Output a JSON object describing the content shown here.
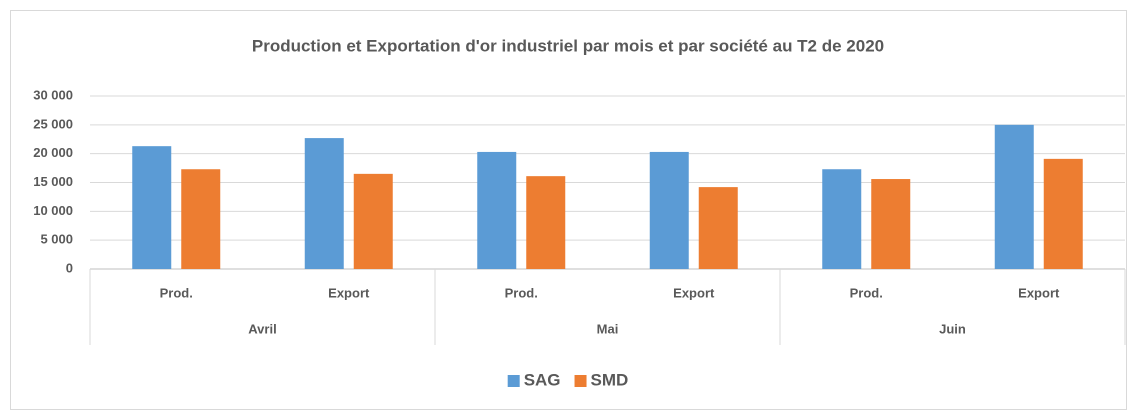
{
  "chart_data": {
    "type": "bar",
    "title": "Production et Exportation d'or industriel par mois et par société au T2 de 2020",
    "categories": [
      "Prod.",
      "Export",
      "Prod.",
      "Export",
      "Prod.",
      "Export"
    ],
    "groups": [
      "Avril",
      "Mai",
      "Juin"
    ],
    "series": [
      {
        "name": "SAG",
        "color": "#5b9bd5",
        "values": [
          21300,
          22700,
          20300,
          20300,
          17300,
          25000
        ]
      },
      {
        "name": "SMD",
        "color": "#ed7d31",
        "values": [
          17300,
          16500,
          16100,
          14200,
          15600,
          19100
        ]
      }
    ],
    "ylim": [
      0,
      30000
    ],
    "yticks": [
      0,
      {
        "value": 5000,
        "label": "5 000"
      },
      {
        "value": 10000,
        "label": "10 000"
      },
      {
        "value": 15000,
        "label": "15 000"
      },
      {
        "value": 20000,
        "label": "20 000"
      },
      {
        "value": 25000,
        "label": "25 000"
      },
      {
        "value": 30000,
        "label": "30 000"
      }
    ],
    "grid": true,
    "legend": "bottom"
  }
}
